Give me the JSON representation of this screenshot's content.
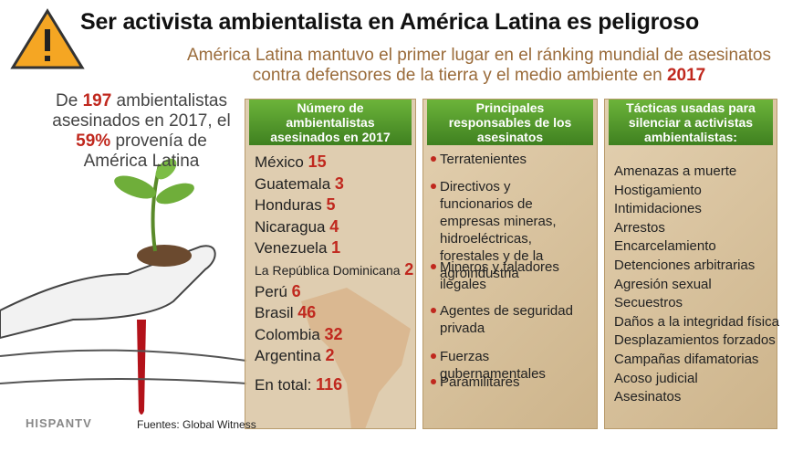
{
  "header": {
    "title": "Ser activista ambientalista en América Latina es peligroso",
    "subtitle_line1": "América Latina mantuvo el primer lugar en el ránking mundial de asesinatos",
    "subtitle_line2": "contra defensores de la tierra y el medio ambiente en",
    "subtitle_year": "2017"
  },
  "intro": {
    "before": "De",
    "killed": "197",
    "middle": "ambientalistas asesinados en 2017, el",
    "share": "59%",
    "after": "provenía de América Latina"
  },
  "panels": [
    {
      "title": "Número de ambientalistas asesinados en 2017",
      "rows": [
        {
          "country": "México",
          "count": 15
        },
        {
          "country": "Guatemala",
          "count": 3
        },
        {
          "country": "Honduras",
          "count": 5
        },
        {
          "country": "Nicaragua",
          "count": 4
        },
        {
          "country": "Venezuela",
          "count": 1
        },
        {
          "country": "La República Dominicana",
          "count": 2
        },
        {
          "country": "Perú",
          "count": 6
        },
        {
          "country": "Brasil",
          "count": 46
        },
        {
          "country": "Colombia",
          "count": 32
        },
        {
          "country": "Argentina",
          "count": 2
        }
      ],
      "total_label": "En total:",
      "total": 116
    },
    {
      "title": "Principales responsables de los asesinatos",
      "items": [
        "Terratenientes",
        "Directivos y funcionarios de empresas mineras, hidroeléctricas, forestales y de la agroindustria",
        "Mineros y taladores ilegales",
        "Agentes de seguridad privada",
        "Fuerzas gubernamentales",
        "Paramilitares"
      ]
    },
    {
      "title": "Tácticas usadas para silenciar a activistas ambientalistas:",
      "items": [
        "Amenazas a muerte",
        "Hostigamiento",
        "Intimidaciones",
        "Arrestos",
        "Encarcelamiento",
        "Detenciones arbitrarias",
        "Agresión sexual",
        "Secuestros",
        "Daños a la integridad física",
        "Desplazamientos forzados",
        "Campañas difamatorias",
        "Acoso judicial",
        "Asesinatos"
      ]
    }
  ],
  "footer": {
    "source": "Fuentes: Global Witness",
    "logo": "HISPANTV"
  }
}
